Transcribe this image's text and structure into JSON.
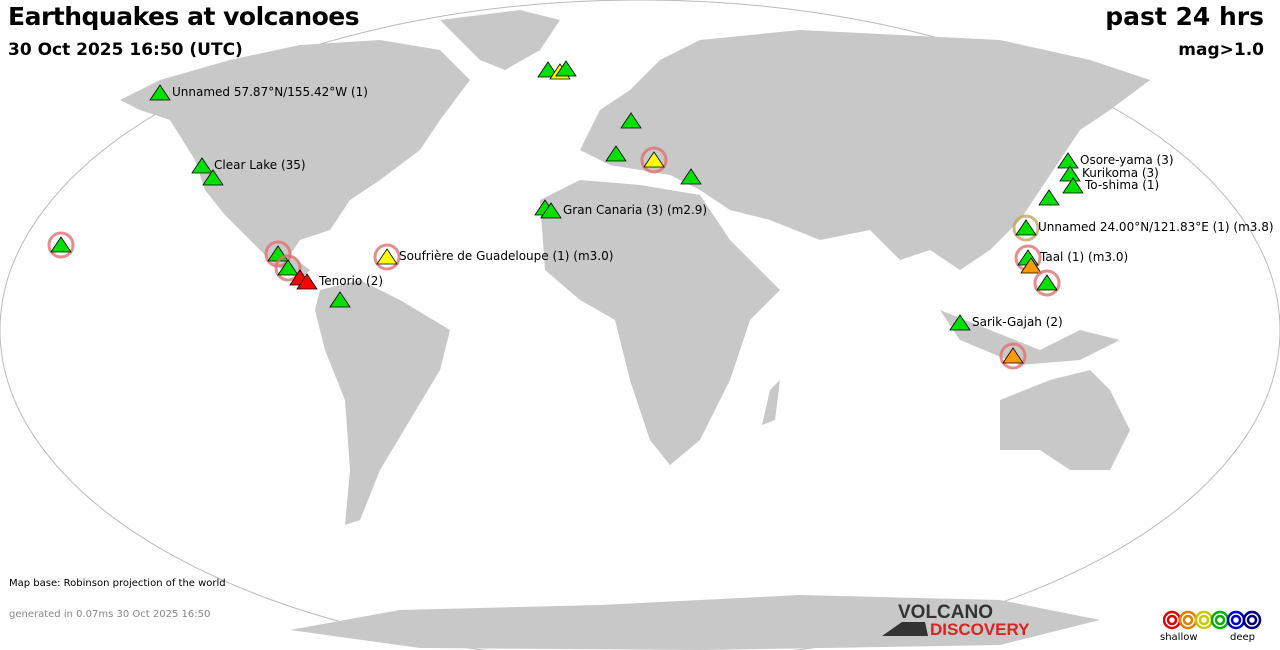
{
  "header": {
    "title": "Earthquakes at volcanoes",
    "datetime": "30 Oct 2025 16:50 (UTC)",
    "period": "past 24 hrs",
    "magnitude_filter": "mag>1.0"
  },
  "map": {
    "land_color": "#c8c8c8",
    "projection_note": "Map base: Robinson projection of the world"
  },
  "footer": {
    "generated": "generated in 0.07ms 30 Oct 2025 16:50",
    "logo_top": "VOLCANO",
    "logo_bottom": "DISCOVERY",
    "legend_shallow": "shallow",
    "legend_deep": "deep",
    "depth_colors": [
      "#e00000",
      "#e08000",
      "#c8c800",
      "#00b000",
      "#0000d0",
      "#000080"
    ]
  },
  "colors": {
    "green": "#00e000",
    "yellow": "#ffff00",
    "orange": "#ff9900",
    "red": "#ff0000"
  },
  "volcanoes": [
    {
      "label": "Unnamed 57.87°N/155.42°W (1)",
      "color": "green"
    },
    {
      "label": "Clear Lake (35)",
      "color": "green"
    },
    {
      "label": "",
      "color": "green"
    },
    {
      "label": "",
      "color": "green"
    },
    {
      "label": "",
      "color": "green"
    },
    {
      "label": "",
      "color": "green"
    },
    {
      "label": "",
      "color": "red"
    },
    {
      "label": "Tenorio (2)",
      "color": "red"
    },
    {
      "label": "",
      "color": "green"
    },
    {
      "label": "Soufrière de Guadeloupe (1) (m3.0)",
      "color": "yellow"
    },
    {
      "label": "",
      "color": "green"
    },
    {
      "label": "",
      "color": "yellow"
    },
    {
      "label": "",
      "color": "green"
    },
    {
      "label": "",
      "color": "green"
    },
    {
      "label": "",
      "color": "green"
    },
    {
      "label": "",
      "color": "yellow"
    },
    {
      "label": "",
      "color": "green"
    },
    {
      "label": "",
      "color": "green"
    },
    {
      "label": "Gran Canaria (3) (m2.9)",
      "color": "green"
    },
    {
      "label": "Osore-yama (3)",
      "color": "green"
    },
    {
      "label": "Kurikoma (3)",
      "color": "green"
    },
    {
      "label": "To-shima (1)",
      "color": "green"
    },
    {
      "label": "",
      "color": "green"
    },
    {
      "label": "Unnamed 24.00°N/121.83°E (1) (m3.8)",
      "color": "green"
    },
    {
      "label": "Taal (1) (m3.0)",
      "color": "green"
    },
    {
      "label": "",
      "color": "orange"
    },
    {
      "label": "",
      "color": "green"
    },
    {
      "label": "Sarik-Gajah (2)",
      "color": "green"
    },
    {
      "label": "",
      "color": "orange"
    }
  ]
}
